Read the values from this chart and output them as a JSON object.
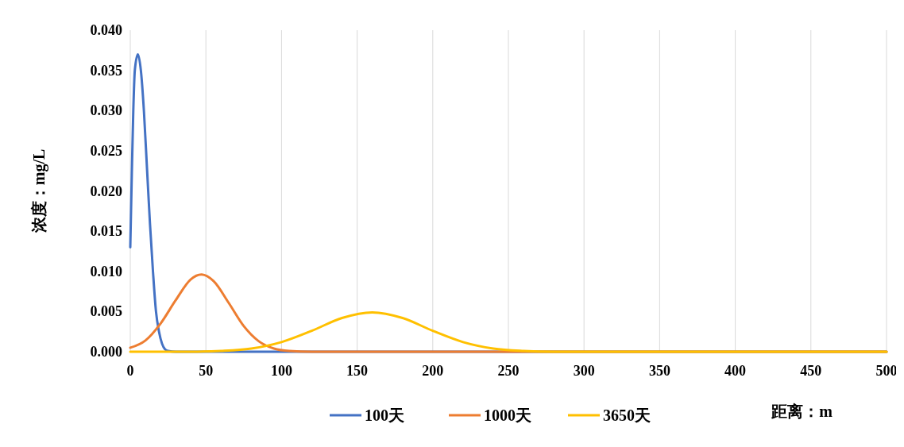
{
  "chart_data": {
    "type": "line",
    "xlabel": "距离：m",
    "ylabel": "浓度：mg/L",
    "xlim": [
      0,
      500
    ],
    "xticks": [
      0,
      50,
      100,
      150,
      200,
      250,
      300,
      350,
      400,
      450,
      500
    ],
    "ylim": [
      0,
      0.04
    ],
    "yticks": [
      {
        "value": 0,
        "label": "0.000"
      },
      {
        "value": 0.005,
        "label": "0.005"
      },
      {
        "value": 0.01,
        "label": "0.010"
      },
      {
        "value": 0.015,
        "label": "0.015"
      },
      {
        "value": 0.02,
        "label": "0.020"
      },
      {
        "value": 0.025,
        "label": "0.025"
      },
      {
        "value": 0.03,
        "label": "0.030"
      },
      {
        "value": 0.035,
        "label": "0.035"
      },
      {
        "value": 0.04,
        "label": "0.040"
      }
    ],
    "grid": "x",
    "legend": "bottom",
    "marker": "none",
    "line_style": "solid",
    "series": [
      {
        "name": "100天",
        "color": "#4472c4",
        "x": [
          0,
          1,
          2,
          3,
          5,
          7,
          9,
          11,
          13,
          15,
          17,
          19,
          21,
          23,
          25,
          30,
          500
        ],
        "values": [
          0.013,
          0.022,
          0.03,
          0.035,
          0.037,
          0.035,
          0.03,
          0.023,
          0.016,
          0.01,
          0.005,
          0.0025,
          0.001,
          0.0003,
          0.0001,
          0,
          0
        ]
      },
      {
        "name": "1000天",
        "color": "#ed7d31",
        "x": [
          0,
          10,
          20,
          30,
          40,
          47,
          55,
          65,
          75,
          85,
          95,
          105,
          120,
          500
        ],
        "values": [
          0.0005,
          0.0014,
          0.0035,
          0.0064,
          0.009,
          0.0096,
          0.0088,
          0.0061,
          0.0032,
          0.0013,
          0.0004,
          0.0001,
          0,
          0
        ]
      },
      {
        "name": "3650天",
        "color": "#ffc000",
        "x": [
          0,
          40,
          60,
          80,
          100,
          120,
          140,
          160,
          180,
          200,
          220,
          240,
          260,
          280,
          300,
          500
        ],
        "values": [
          0,
          0,
          0.0001,
          0.0004,
          0.0012,
          0.0026,
          0.0042,
          0.0049,
          0.0042,
          0.0026,
          0.0012,
          0.0004,
          0.0001,
          0,
          0,
          0
        ]
      }
    ]
  }
}
